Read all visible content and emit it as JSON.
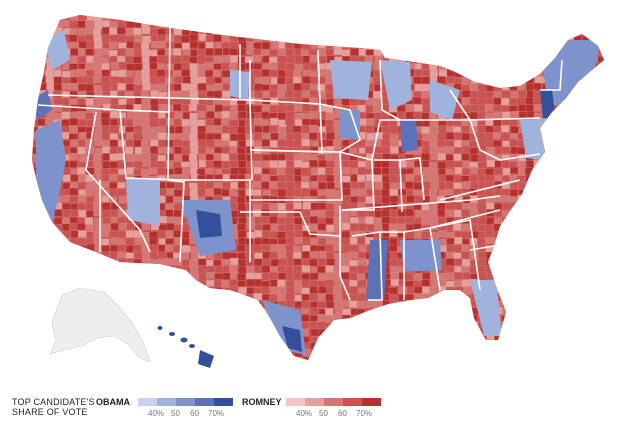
{
  "legend": {
    "title_line1": "TOP CANDIDATE'S",
    "title_line2": "SHARE OF VOTE",
    "candidates": [
      {
        "name": "OBAMA",
        "colors": [
          "#c7d3ec",
          "#9fb3dd",
          "#7e93cb",
          "#5d72b6",
          "#344f9c"
        ],
        "ticks": [
          "40%",
          "50",
          "60",
          "70%"
        ]
      },
      {
        "name": "ROMNEY",
        "colors": [
          "#f4c7c4",
          "#e59f9c",
          "#d47673",
          "#c85350",
          "#b5312e"
        ],
        "ticks": [
          "40%",
          "50",
          "60",
          "70%"
        ]
      }
    ]
  },
  "map": {
    "region": "United States counties",
    "alaska_color": "#eeeeee",
    "hawaii_color": "#344f9c",
    "state_border_color": "#ffffff"
  }
}
